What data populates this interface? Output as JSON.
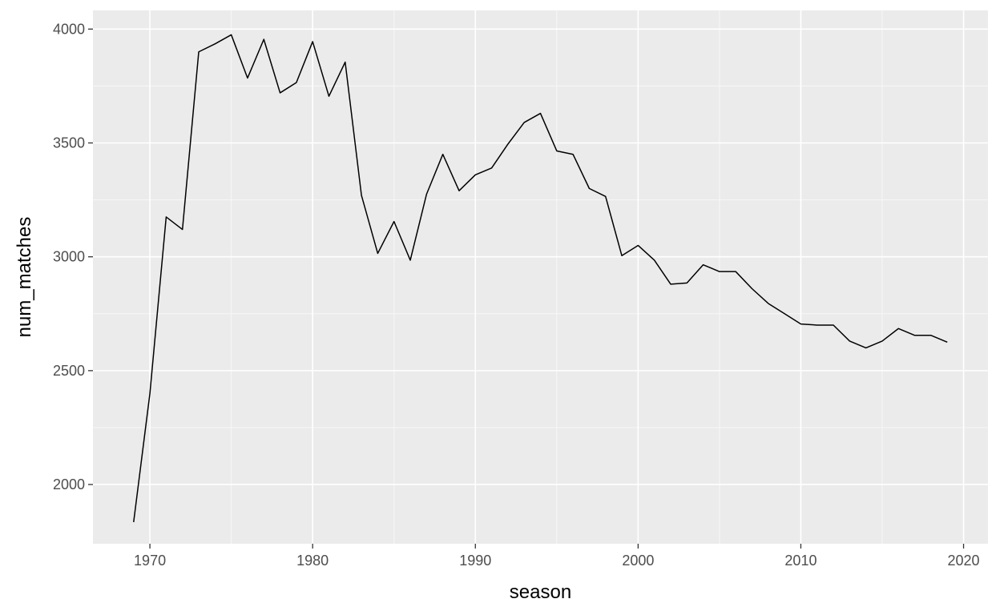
{
  "chart_data": {
    "type": "line",
    "xlabel": "season",
    "ylabel": "num_matches",
    "xlim": [
      1966.5,
      2021.5
    ],
    "ylim": [
      1740,
      4082
    ],
    "x_ticks": [
      1970,
      1980,
      1990,
      2000,
      2010,
      2020
    ],
    "x_tick_labels": [
      "1970",
      "1980",
      "1990",
      "2000",
      "2010",
      "2020"
    ],
    "x_minor_ticks": [
      1975,
      1985,
      1995,
      2005,
      2015
    ],
    "y_ticks": [
      2000,
      2500,
      3000,
      3500,
      4000
    ],
    "y_tick_labels": [
      "2000",
      "2500",
      "3000",
      "3500",
      "4000"
    ],
    "y_minor_ticks": [
      2250,
      2750,
      3250,
      3750
    ],
    "grid": true,
    "legend": "none",
    "colors": {
      "panel_background": "#ebebeb",
      "grid_major": "#ffffff",
      "grid_minor": "#f7f7f7",
      "line": "#000000",
      "tick_label": "#4d4d4d",
      "axis_title": "#000000",
      "tick_mark": "#333333"
    },
    "series": [
      {
        "x": [
          1969,
          1970,
          1971,
          1972,
          1973,
          1974,
          1975,
          1976,
          1977,
          1978,
          1979,
          1980,
          1981,
          1982,
          1983,
          1984,
          1985,
          1986,
          1987,
          1988,
          1989,
          1990,
          1991,
          1992,
          1993,
          1994,
          1995,
          1996,
          1997,
          1998,
          1999,
          2000,
          2001,
          2002,
          2003,
          2004,
          2005,
          2006,
          2007,
          2008,
          2009,
          2010,
          2011,
          2012,
          2013,
          2014,
          2015,
          2016,
          2017,
          2018,
          2019
        ],
        "values": [
          1835,
          2400,
          3175,
          3120,
          3900,
          3935,
          3975,
          3785,
          3955,
          3720,
          3765,
          3945,
          3705,
          3855,
          3270,
          3015,
          3155,
          2985,
          3275,
          3450,
          3290,
          3360,
          3390,
          3495,
          3590,
          3630,
          3465,
          3450,
          3300,
          3265,
          3005,
          3050,
          2985,
          2880,
          2885,
          2965,
          2935,
          2935,
          2860,
          2795,
          2750,
          2705,
          2700,
          2700,
          2630,
          2600,
          2630,
          2685,
          2655,
          2655,
          2625
        ]
      }
    ]
  }
}
